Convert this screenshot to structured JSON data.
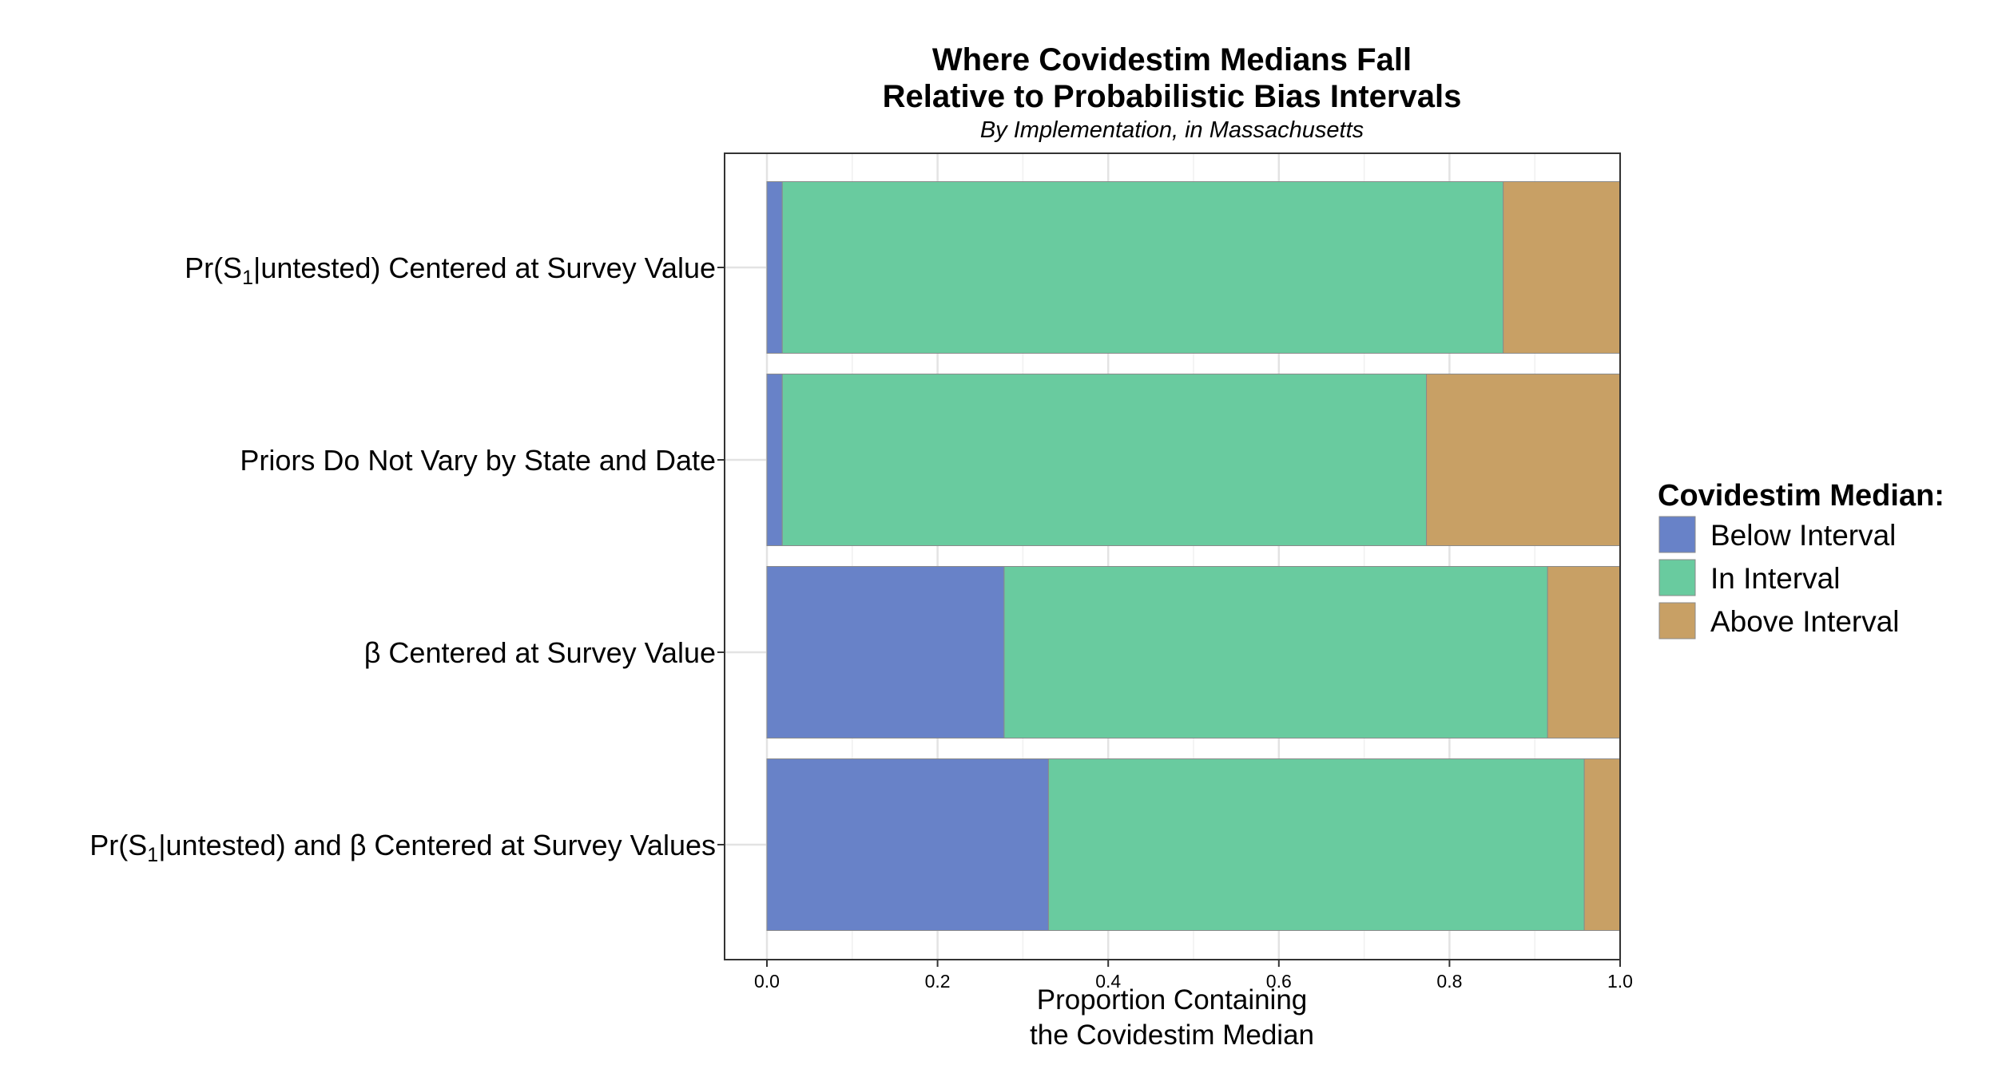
{
  "chart_data": {
    "type": "bar",
    "orientation": "horizontal",
    "stacked": true,
    "title_lines": [
      "Where Covidestim Medians Fall",
      "Relative to Probabilistic Bias Intervals"
    ],
    "subtitle": "By Implementation, in Massachusetts",
    "categories": [
      {
        "pre": "Pr(S",
        "sub": "1",
        "post": "|untested) Centered at Survey Value"
      },
      {
        "pre": "Priors Do Not Vary by State and Date",
        "sub": "",
        "post": ""
      },
      {
        "pre": "β Centered at Survey Value",
        "sub": "",
        "post": ""
      },
      {
        "pre": "Pr(S",
        "sub": "1",
        "post": "|untested) and β Centered at Survey Values"
      }
    ],
    "series": [
      {
        "name": "Below Interval",
        "color": "#6882c8",
        "values": [
          0.018,
          0.018,
          0.278,
          0.33
        ]
      },
      {
        "name": "In Interval",
        "color": "#69cb9f",
        "values": [
          0.845,
          0.755,
          0.637,
          0.628
        ]
      },
      {
        "name": "Above Interval",
        "color": "#c8a065",
        "values": [
          0.137,
          0.227,
          0.085,
          0.042
        ]
      }
    ],
    "xlim": [
      -0.05,
      1.0
    ],
    "xticks": [
      "0.0",
      "0.2",
      "0.4",
      "0.6",
      "0.8",
      "1.0"
    ],
    "xtick_values": [
      0,
      0.2,
      0.4,
      0.6,
      0.8,
      1.0
    ],
    "xlabel_lines": [
      "Proportion Containing",
      "the Covidestim Median"
    ],
    "grid": true,
    "legend": {
      "title": "Covidestim Median:",
      "position": "right"
    }
  }
}
